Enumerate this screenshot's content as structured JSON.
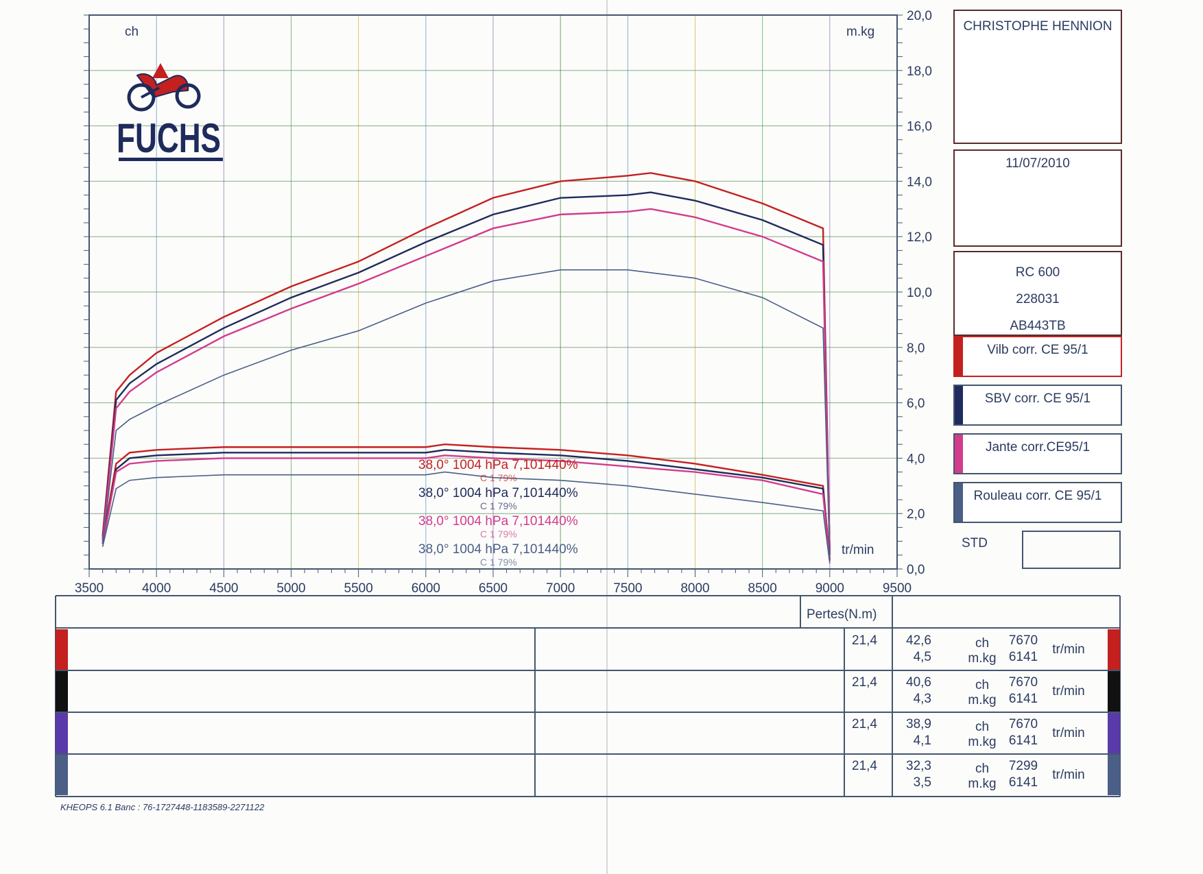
{
  "chart_data": {
    "type": "line",
    "xlim": [
      3500,
      9500
    ],
    "ylim": [
      0,
      20
    ],
    "x_ticks": [
      3500,
      4000,
      4500,
      5000,
      5500,
      6000,
      6500,
      7000,
      7500,
      8000,
      8500,
      9000,
      9500
    ],
    "y_ticks": [
      "0,0",
      "2,0",
      "4,0",
      "6,0",
      "8,0",
      "10,0",
      "12,0",
      "14,0",
      "16,0",
      "18,0",
      "20,0"
    ],
    "y_tick_values": [
      0,
      2,
      4,
      6,
      8,
      10,
      12,
      14,
      16,
      18,
      20
    ],
    "left_unit": "ch",
    "right_unit": "m.kg",
    "xlabel": "tr/min",
    "grid": true,
    "series": [
      {
        "name": "Vilb corr. CE 95/1",
        "color": "#c42020",
        "power_x": [
          3600,
          3700,
          3800,
          4000,
          4500,
          5000,
          5500,
          6000,
          6500,
          7000,
          7500,
          7670,
          8000,
          8500,
          8950,
          9000
        ],
        "power_y": [
          1.2,
          6.4,
          7.0,
          7.8,
          9.1,
          10.2,
          11.1,
          12.3,
          13.4,
          14.0,
          14.2,
          14.3,
          14.0,
          13.2,
          12.3,
          0.5
        ],
        "torque_x": [
          3600,
          3700,
          3800,
          4000,
          4500,
          5000,
          5500,
          6000,
          6141,
          6500,
          7000,
          7500,
          8000,
          8500,
          8950,
          9000
        ],
        "torque_y": [
          1.0,
          3.8,
          4.2,
          4.3,
          4.4,
          4.4,
          4.4,
          4.4,
          4.5,
          4.4,
          4.3,
          4.1,
          3.8,
          3.4,
          3.0,
          0.3
        ]
      },
      {
        "name": "SBV corr. CE 95/1",
        "color": "#1e2b5c",
        "power_x": [
          3600,
          3700,
          3800,
          4000,
          4500,
          5000,
          5500,
          6000,
          6500,
          7000,
          7500,
          7670,
          8000,
          8500,
          8950,
          9000
        ],
        "power_y": [
          1.1,
          6.1,
          6.7,
          7.4,
          8.7,
          9.8,
          10.7,
          11.8,
          12.8,
          13.4,
          13.5,
          13.6,
          13.3,
          12.6,
          11.7,
          0.5
        ],
        "torque_x": [
          3600,
          3700,
          3800,
          4000,
          4500,
          5000,
          5500,
          6000,
          6141,
          6500,
          7000,
          7500,
          8000,
          8500,
          8950,
          9000
        ],
        "torque_y": [
          0.9,
          3.6,
          4.0,
          4.1,
          4.2,
          4.2,
          4.2,
          4.2,
          4.3,
          4.2,
          4.1,
          3.9,
          3.6,
          3.3,
          2.9,
          0.3
        ]
      },
      {
        "name": "Jante corr.CE95/1",
        "color": "#d23c8c",
        "power_x": [
          3600,
          3700,
          3800,
          4000,
          4500,
          5000,
          5500,
          6000,
          6500,
          7000,
          7500,
          7670,
          8000,
          8500,
          8950,
          9000
        ],
        "power_y": [
          1.0,
          5.8,
          6.4,
          7.1,
          8.4,
          9.4,
          10.3,
          11.3,
          12.3,
          12.8,
          12.9,
          13.0,
          12.7,
          12.0,
          11.1,
          0.5
        ],
        "torque_x": [
          3600,
          3700,
          3800,
          4000,
          4500,
          5000,
          5500,
          6000,
          6141,
          6500,
          7000,
          7500,
          8000,
          8500,
          8950,
          9000
        ],
        "torque_y": [
          0.9,
          3.5,
          3.8,
          3.9,
          4.0,
          4.0,
          4.0,
          4.0,
          4.1,
          4.0,
          3.9,
          3.7,
          3.5,
          3.2,
          2.7,
          0.3
        ]
      },
      {
        "name": "Rouleau corr. CE 95/1",
        "color": "#4a5e86",
        "power_x": [
          3600,
          3700,
          3800,
          4000,
          4500,
          5000,
          5500,
          6000,
          6500,
          7000,
          7299,
          7500,
          8000,
          8500,
          8950,
          9000
        ],
        "power_y": [
          0.9,
          5.0,
          5.4,
          5.9,
          7.0,
          7.9,
          8.6,
          9.6,
          10.4,
          10.8,
          10.8,
          10.8,
          10.5,
          9.8,
          8.7,
          0.4
        ],
        "torque_x": [
          3600,
          3700,
          3800,
          4000,
          4500,
          5000,
          5500,
          6000,
          6141,
          6500,
          7000,
          7500,
          8000,
          8500,
          8950,
          9000
        ],
        "torque_y": [
          0.8,
          2.9,
          3.2,
          3.3,
          3.4,
          3.4,
          3.4,
          3.4,
          3.5,
          3.3,
          3.2,
          3.0,
          2.7,
          2.4,
          2.1,
          0.2
        ]
      }
    ],
    "annotations": [
      {
        "temp": "38,0°",
        "pressure": "1004 hPa",
        "humidity": "7,101440%",
        "sub": "C 1 79%",
        "color": "#c42020"
      },
      {
        "temp": "38,0°",
        "pressure": "1004 hPa",
        "humidity": "7,101440%",
        "sub": "C 1 79%",
        "color": "#1e2b5c"
      },
      {
        "temp": "38,0°",
        "pressure": "1004 hPa",
        "humidity": "7,101440%",
        "sub": "C 1 79%",
        "color": "#d23c8c"
      },
      {
        "temp": "38,0°",
        "pressure": "1004 hPa",
        "humidity": "7,101440%",
        "sub": "C 1 79%",
        "color": "#4a5e86"
      }
    ]
  },
  "logo": {
    "text": "FUCHS",
    "icon": "motorbike-icon"
  },
  "info": {
    "name": "CHRISTOPHE HENNION",
    "date": "11/07/2010",
    "vehicle": {
      "model": "RC 600",
      "code": "228031",
      "plate": "AB443TB"
    },
    "std_label": "STD"
  },
  "table": {
    "losses_header": "Pertes(N.m)",
    "rows": [
      {
        "color": "#c42020",
        "losses": "21,4",
        "power": "42,6",
        "torque": "4,5",
        "power_unit": "ch",
        "torque_unit": "m.kg",
        "power_rpm": "7670",
        "torque_rpm": "6141",
        "rpm_unit": "tr/min"
      },
      {
        "color": "#111111",
        "losses": "21,4",
        "power": "40,6",
        "torque": "4,3",
        "power_unit": "ch",
        "torque_unit": "m.kg",
        "power_rpm": "7670",
        "torque_rpm": "6141",
        "rpm_unit": "tr/min"
      },
      {
        "color": "#5a3aa8",
        "losses": "21,4",
        "power": "38,9",
        "torque": "4,1",
        "power_unit": "ch",
        "torque_unit": "m.kg",
        "power_rpm": "7670",
        "torque_rpm": "6141",
        "rpm_unit": "tr/min"
      },
      {
        "color": "#4a5e86",
        "losses": "21,4",
        "power": "32,3",
        "torque": "3,5",
        "power_unit": "ch",
        "torque_unit": "m.kg",
        "power_rpm": "7299",
        "torque_rpm": "6141",
        "rpm_unit": "tr/min"
      }
    ]
  },
  "footer": "KHEOPS 6.1  Banc : 76-1727448-1183589-2271122"
}
